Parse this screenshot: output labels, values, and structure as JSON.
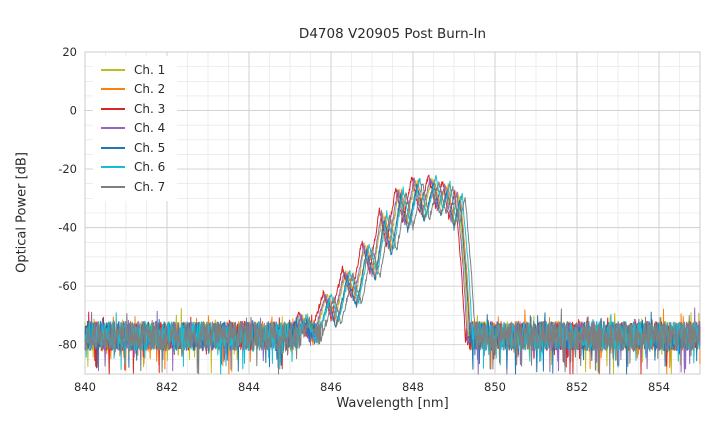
{
  "chart_data": {
    "type": "line",
    "title": "D4708 V20905 Post Burn-In",
    "xlabel": "Wavelength [nm]",
    "ylabel": "Optical Power [dB]",
    "xlim": [
      840,
      855
    ],
    "ylim": [
      -90,
      20
    ],
    "xticks": [
      840,
      842,
      844,
      846,
      848,
      850,
      852,
      854
    ],
    "yticks": [
      20,
      0,
      -20,
      -40,
      -60,
      -80
    ],
    "grid": true,
    "minor_grid": {
      "x_step": 0.5,
      "y_step": 5
    },
    "legend_position": "upper left",
    "noise_floor": {
      "mean_db": -77,
      "jitter_db": 5,
      "spike_prob": 0.06,
      "spike_depth_db": 11,
      "min_db": -90
    },
    "envelope_db": [
      [
        844.9,
        -90
      ],
      [
        845.32,
        -70
      ],
      [
        845.55,
        -80
      ],
      [
        845.92,
        -63
      ],
      [
        846.1,
        -72
      ],
      [
        846.38,
        -55
      ],
      [
        846.6,
        -65
      ],
      [
        846.85,
        -46
      ],
      [
        847.05,
        -56
      ],
      [
        847.28,
        -35
      ],
      [
        847.45,
        -47
      ],
      [
        847.68,
        -27
      ],
      [
        847.85,
        -39
      ],
      [
        848.08,
        -23.5
      ],
      [
        848.25,
        -36
      ],
      [
        848.48,
        -23
      ],
      [
        848.65,
        -34
      ],
      [
        848.82,
        -25
      ],
      [
        848.98,
        -38
      ],
      [
        849.12,
        -28
      ],
      [
        849.28,
        -55
      ],
      [
        849.42,
        -90
      ]
    ],
    "series": [
      {
        "name": "Ch. 1",
        "color": "#bcbd22",
        "shift_nm": -0.02,
        "offset_db": 0
      },
      {
        "name": "Ch. 2",
        "color": "#ff7f0e",
        "shift_nm": 0.04,
        "offset_db": -1
      },
      {
        "name": "Ch. 3",
        "color": "#d62728",
        "shift_nm": -0.1,
        "offset_db": 1
      },
      {
        "name": "Ch. 4",
        "color": "#9467bd",
        "shift_nm": -0.05,
        "offset_db": 0
      },
      {
        "name": "Ch. 5",
        "color": "#1f77b4",
        "shift_nm": 0.02,
        "offset_db": -2
      },
      {
        "name": "Ch. 6",
        "color": "#17becf",
        "shift_nm": 0.08,
        "offset_db": 0
      },
      {
        "name": "Ch. 7",
        "color": "#7f7f7f",
        "shift_nm": 0.15,
        "offset_db": -1
      }
    ]
  }
}
